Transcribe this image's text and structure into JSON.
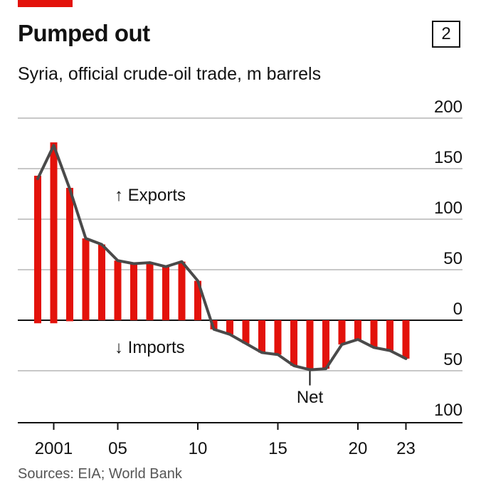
{
  "header": {
    "title": "Pumped out",
    "chart_number": "2",
    "subtitle": "Syria, official crude-oil trade, m barrels"
  },
  "footer": {
    "source": "Sources: EIA; World Bank"
  },
  "colors": {
    "accent": "#e3120b",
    "bars": "#e3120b",
    "net_line": "#4a4a4a",
    "grid": "#c8c8c8",
    "axis": "#121212"
  },
  "chart_data": {
    "type": "bar",
    "x": [
      2000,
      2001,
      2002,
      2003,
      2004,
      2005,
      2006,
      2007,
      2008,
      2009,
      2010,
      2011,
      2012,
      2013,
      2014,
      2015,
      2016,
      2017,
      2018,
      2019,
      2020,
      2021,
      2022,
      2023
    ],
    "x_tick_labels": [
      {
        "x": 2001,
        "label": "2001"
      },
      {
        "x": 2005,
        "label": "05"
      },
      {
        "x": 2010,
        "label": "10"
      },
      {
        "x": 2015,
        "label": "15"
      },
      {
        "x": 2020,
        "label": "20"
      },
      {
        "x": 2023,
        "label": "23"
      }
    ],
    "y_ticks": [
      {
        "value": 200,
        "label": "200"
      },
      {
        "value": 150,
        "label": "150"
      },
      {
        "value": 100,
        "label": "100"
      },
      {
        "value": 50,
        "label": "50"
      },
      {
        "value": 0,
        "label": "0"
      },
      {
        "value": -50,
        "label": "50"
      },
      {
        "value": -100,
        "label": "100"
      }
    ],
    "ylim": [
      -100,
      200
    ],
    "grid": true,
    "series": [
      {
        "name": "Exports",
        "values": [
          143,
          176,
          131,
          81,
          75,
          59,
          56,
          57,
          53,
          58,
          39,
          0,
          0,
          0,
          0,
          0,
          0,
          0,
          0,
          0,
          0,
          0,
          0,
          0
        ]
      },
      {
        "name": "Imports",
        "values": [
          -3,
          -3,
          -1,
          0,
          0,
          0,
          0,
          0,
          0,
          0,
          0,
          -9,
          -14,
          -23,
          -32,
          -34,
          -45,
          -49,
          -48,
          -24,
          -19,
          -27,
          -30,
          -38
        ]
      },
      {
        "name": "Net",
        "values": [
          140,
          173,
          130,
          81,
          75,
          59,
          56,
          57,
          53,
          58,
          39,
          -9,
          -14,
          -23,
          -32,
          -34,
          -45,
          -49,
          -48,
          -24,
          -19,
          -27,
          -30,
          -38
        ]
      }
    ],
    "annotations": {
      "exports_label": "↑ Exports",
      "imports_label": "↓ Imports",
      "net_label": "Net"
    }
  }
}
